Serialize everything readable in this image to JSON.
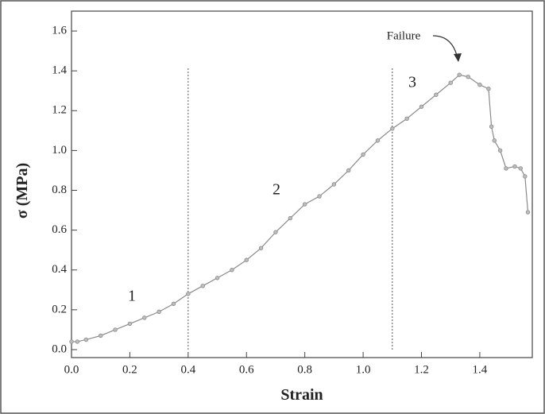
{
  "chart_data": {
    "type": "line",
    "xlabel": "Strain",
    "ylabel": "σ (MPa)",
    "x": [
      0.0,
      0.02,
      0.05,
      0.1,
      0.15,
      0.2,
      0.25,
      0.3,
      0.35,
      0.4,
      0.45,
      0.5,
      0.55,
      0.6,
      0.65,
      0.7,
      0.75,
      0.8,
      0.85,
      0.9,
      0.95,
      1.0,
      1.05,
      1.1,
      1.15,
      1.2,
      1.25,
      1.3,
      1.33,
      1.36,
      1.4,
      1.43,
      1.44,
      1.45,
      1.47,
      1.49,
      1.52,
      1.54,
      1.555,
      1.565
    ],
    "series": [
      {
        "name": "σ",
        "color": "#8a8a8a",
        "values": [
          0.04,
          0.04,
          0.05,
          0.07,
          0.1,
          0.13,
          0.16,
          0.19,
          0.23,
          0.28,
          0.32,
          0.36,
          0.4,
          0.45,
          0.51,
          0.59,
          0.66,
          0.73,
          0.77,
          0.83,
          0.9,
          0.98,
          1.05,
          1.11,
          1.16,
          1.22,
          1.28,
          1.34,
          1.38,
          1.37,
          1.33,
          1.31,
          1.12,
          1.05,
          1.0,
          0.91,
          0.92,
          0.91,
          0.87,
          0.69
        ]
      }
    ],
    "xlim": [
      0,
      1.58
    ],
    "ylim": [
      -0.04,
      1.7
    ],
    "xticks": [
      {
        "value": 0.0,
        "label": "0.0"
      },
      0.2,
      0.4,
      0.6,
      0.8,
      {
        "value": 1.0,
        "label": "1.0"
      },
      1.2,
      1.4
    ],
    "yticks": [
      {
        "value": 0.0,
        "label": "0.0"
      },
      0.2,
      0.4,
      0.6,
      0.8,
      {
        "value": 1.0,
        "label": "1.0"
      },
      1.2,
      1.4,
      1.6
    ],
    "vlines": [
      0.4,
      1.1
    ],
    "annotations": [
      "1",
      "2",
      "3",
      "Failure"
    ]
  }
}
